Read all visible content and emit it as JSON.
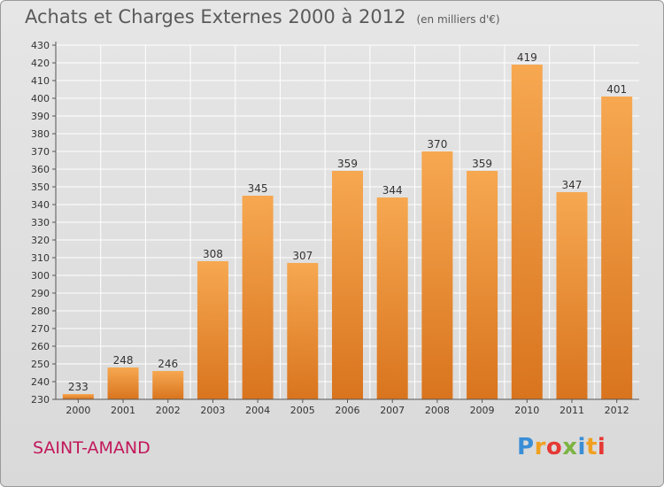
{
  "title": "Achats et Charges Externes 2000 à 2012",
  "unit": "(en milliers d'€)",
  "commune": "SAINT-AMAND",
  "logo": {
    "letters": [
      {
        "ch": "P",
        "color": "#3a8ed6"
      },
      {
        "ch": "r",
        "color": "#f0a020"
      },
      {
        "ch": "o",
        "color": "#e53935"
      },
      {
        "ch": "x",
        "color": "#7cb342"
      },
      {
        "ch": "i",
        "color": "#3a8ed6"
      },
      {
        "ch": "t",
        "color": "#f0a020"
      },
      {
        "ch": "i",
        "color": "#e53935"
      }
    ]
  },
  "colors": {
    "bar_top": "#f6a851",
    "bar_bottom": "#d9741e",
    "axis": "#555555",
    "grid": "#ffffff"
  },
  "chart_data": {
    "type": "bar",
    "categories": [
      "2000",
      "2001",
      "2002",
      "2003",
      "2004",
      "2005",
      "2006",
      "2007",
      "2008",
      "2009",
      "2010",
      "2011",
      "2012"
    ],
    "values": [
      233,
      248,
      246,
      308,
      345,
      307,
      359,
      344,
      370,
      359,
      419,
      347,
      401
    ],
    "ylim": [
      230,
      430
    ],
    "yticks": [
      230,
      240,
      250,
      260,
      270,
      280,
      290,
      300,
      310,
      320,
      330,
      340,
      350,
      360,
      370,
      380,
      390,
      400,
      410,
      420,
      430
    ],
    "grid": true
  }
}
